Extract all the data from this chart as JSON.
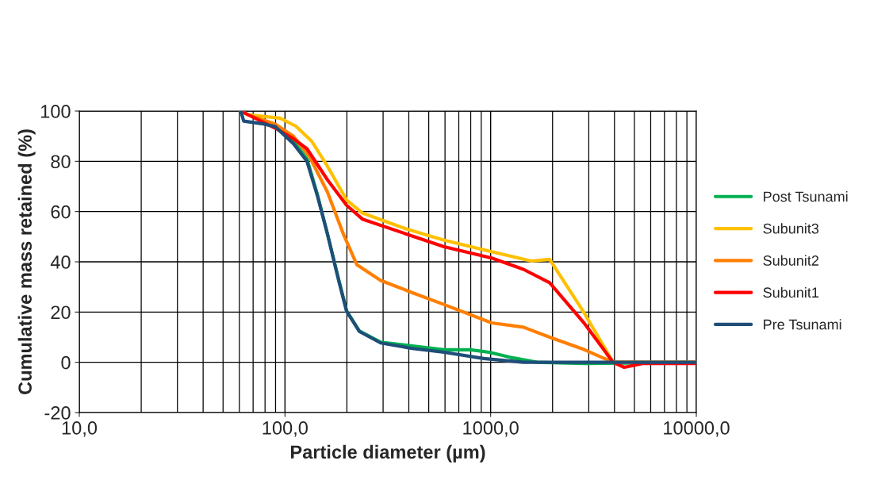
{
  "chart_data": {
    "type": "line",
    "xlabel": "Particle diameter (µm)",
    "ylabel": "Cumulative mass retained (%)",
    "log": "x",
    "xlim": [
      10,
      10000
    ],
    "ylim": [
      -20,
      100
    ],
    "xticks": [
      {
        "value": 10,
        "label": "10,0"
      },
      {
        "value": 100,
        "label": "100,0"
      },
      {
        "value": 1000,
        "label": "1000,0"
      },
      {
        "value": 10000,
        "label": "10000,0"
      }
    ],
    "yticks": [
      -20,
      0,
      20,
      40,
      60,
      80,
      100
    ],
    "grid": true,
    "legend": "right",
    "marker": "none",
    "line_style": "solid",
    "series": [
      {
        "name": "Post Tsunami",
        "color": "#00b050",
        "x": [
          89.7,
          110,
          127.9,
          143.5,
          161,
          182.4,
          199.4,
          229.8,
          292,
          416.7,
          594,
          797,
          985,
          1242,
          1680,
          2862,
          10000
        ],
        "values": [
          94.5,
          88,
          81,
          67,
          51,
          33,
          20.5,
          12.5,
          8,
          6.5,
          5,
          5,
          4,
          2,
          0,
          -0.5,
          0
        ]
      },
      {
        "name": "Subunit3",
        "color": "#ffc000",
        "x": [
          61,
          66.3,
          94.6,
          112.9,
          134.9,
          161,
          199.4,
          238,
          391.6,
          594,
          1012,
          1578,
          1936,
          2862,
          3940,
          10000
        ],
        "values": [
          100,
          98.5,
          97.2,
          94,
          88,
          78,
          64.6,
          59.4,
          53,
          48.6,
          44,
          40.3,
          41,
          19.4,
          0,
          0
        ]
      },
      {
        "name": "Subunit2",
        "color": "#ff7f00",
        "x": [
          61,
          66.3,
          89.7,
          110,
          131.3,
          161,
          192.4,
          223.8,
          292,
          416.7,
          594,
          1012,
          1444,
          1936,
          2862,
          3940,
          10000
        ],
        "values": [
          100,
          98.5,
          94.8,
          90,
          82,
          67.7,
          51,
          38.8,
          32.6,
          27.7,
          23,
          15.7,
          14,
          10,
          5,
          0,
          0
        ]
      },
      {
        "name": "Subunit1",
        "color": "#ff0000",
        "x": [
          61,
          66.3,
          89.7,
          110,
          127.9,
          161,
          199.4,
          238,
          391.6,
          594,
          1012,
          1444,
          1936,
          2862,
          3940,
          4460,
          5470,
          10000
        ],
        "values": [
          100,
          98.5,
          93.2,
          89,
          85,
          72.6,
          62.5,
          57,
          51,
          46,
          41.5,
          37,
          31.7,
          15.4,
          0,
          -2,
          -0.5,
          -0.5
        ]
      },
      {
        "name": "Pre Tsunami",
        "color": "#1f4e79",
        "x": [
          61,
          63,
          77,
          89.7,
          110,
          127.9,
          143.5,
          161,
          182.4,
          199.4,
          229.8,
          292,
          416.7,
          594,
          926,
          1444,
          10000
        ],
        "values": [
          100,
          96,
          95,
          93.8,
          87,
          80,
          66.5,
          51,
          32.6,
          20.3,
          12.3,
          7.7,
          5.5,
          4,
          1.5,
          0,
          0
        ]
      }
    ]
  }
}
